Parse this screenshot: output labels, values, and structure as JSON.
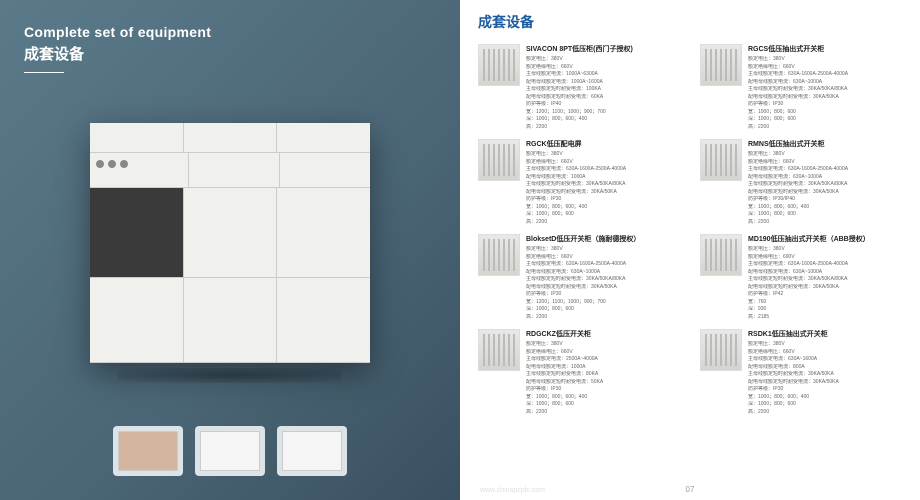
{
  "left": {
    "title_en": "Complete set of equipment",
    "title_cn": "成套设备"
  },
  "right": {
    "title": "成套设备",
    "page_num": "07",
    "watermark": "www.chinapcplc.com"
  },
  "products": [
    {
      "name": "SIVACON 8PT低压柜(西门子授权)",
      "specs": [
        "额定电压：380V",
        "额定绝缘电压：660V",
        "主母线额定电流：1000A~6300A",
        "配电母线额定电流：1000A~1600A",
        "主母线额定短时耐受电流：100KA",
        "配电母线额定短时耐受电流：60KA",
        "防护等级：IP40",
        "宽：1200；1100；1000；900；700",
        "深：1000；800；600；400",
        "高：2200"
      ]
    },
    {
      "name": "RGCS低压抽出式开关柜",
      "specs": [
        "额定电压：380V",
        "额定绝缘电压：660V",
        "主母线额定电流：630A-1600A-2500A-4000A",
        "配电母线额定电流：630A~1000A",
        "主母线额定短时耐受电流：30KA/50KA/80KA",
        "配电母线额定短时耐受电流：30KA/50KA",
        "防护等级：IP30",
        "宽：1000；800；600",
        "深：1000；800；600",
        "高：2200"
      ]
    },
    {
      "name": "RGCK低压配电屏",
      "specs": [
        "额定电压：380V",
        "额定绝缘电压：660V",
        "主母线额定电流：630A-1600A-2500A-4000A",
        "配电母线额定电流：1000A",
        "主母线额定短时耐受电流：30KA/50KA/80KA",
        "配电母线额定短时耐受电流：30KA/50KA",
        "防护等级：IP30",
        "宽：1000；800；600；400",
        "深：1000；800；600",
        "高：2200"
      ]
    },
    {
      "name": "RMNS低压抽出式开关柜",
      "specs": [
        "额定电压：380V",
        "额定绝缘电压：660V",
        "主母线额定电流：630A-1600A-2500A-4000A",
        "配电母线额定电流：630A~1000A",
        "主母线额定短时耐受电流：30KA/50KA/80KA",
        "配电母线额定短时耐受电流：30KA/50KA",
        "防护等级：IP30/IP40",
        "宽：1000；800；600；400",
        "深：1000；800；600",
        "高：2200"
      ]
    },
    {
      "name": "BloksetD低压开关柜（施耐德授权）",
      "specs": [
        "额定电压：380V",
        "额定绝缘电压：660V",
        "主母线额定电流：630A-1600A-2500A-4000A",
        "配电母线额定电流：630A~1000A",
        "主母线额定短时耐受电流：30KA/50KA/80KA",
        "配电母线额定短时耐受电流：30KA/50KA",
        "防护等级：IP30",
        "宽：1200；1100；1000；900；700",
        "深：1000；800；600",
        "高：2200"
      ]
    },
    {
      "name": "MD190低压抽出式开关柜（ABB授权）",
      "specs": [
        "额定电压：380V",
        "额定绝缘电压：690V",
        "主母线额定电流：630A-1600A-2500A-4000A",
        "配电母线额定电流：630A~1000A",
        "主母线额定短时耐受电流：30KA/50KA/80KA",
        "配电母线额定短时耐受电流：30KA/50KA",
        "防护等级：IP42",
        "宽：760",
        "深：930",
        "高：2185"
      ]
    },
    {
      "name": "RDGCKZ低压开关柜",
      "specs": [
        "额定电压：380V",
        "额定绝缘电压：660V",
        "主母线额定电流：2500A~4000A",
        "配电母线额定电流：1000A",
        "主母线额定短时耐受电流：80KA",
        "配电母线额定短时耐受电流：50KA",
        "防护等级：IP30",
        "宽：1000；800；600；400",
        "深：1000；800；600",
        "高：2200"
      ]
    },
    {
      "name": "RSDK1低压抽出式开关柜",
      "specs": [
        "额定电压：380V",
        "额定绝缘电压：660V",
        "主母线额定电流：630A~1600A",
        "配电母线额定电流：800A",
        "主母线额定短时耐受电流：30KA/50KA",
        "配电母线额定短时耐受电流：30KA/50KA",
        "防护等级：IP30",
        "宽：1000；800；600；400",
        "深：1000；800；600",
        "高：2200"
      ]
    }
  ]
}
